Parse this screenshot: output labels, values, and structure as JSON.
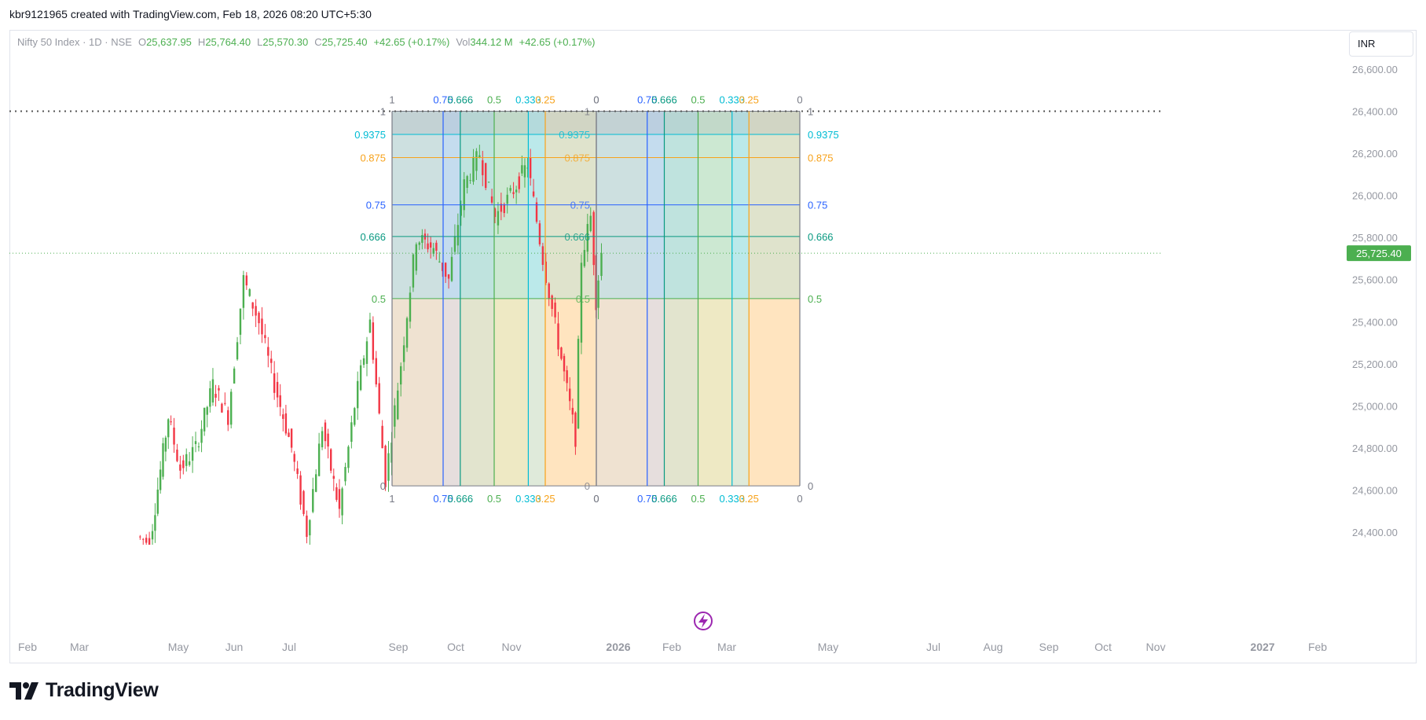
{
  "header": {
    "attribution": "kbr9121965 created with TradingView.com, Feb 18, 2026 08:20 UTC+5:30"
  },
  "legend": {
    "symbol": "Nifty 50 Index · 1D · NSE",
    "open_label": "O",
    "open": "25,637.95",
    "high_label": "H",
    "high": "25,764.40",
    "low_label": "L",
    "low": "25,570.30",
    "close_label": "C",
    "close": "25,725.40",
    "change": "+42.65 (+0.17%)",
    "vol_label": "Vol",
    "vol": "344.12 M",
    "vol_change": "+42.65 (+0.17%)"
  },
  "currency": "INR",
  "footer": {
    "brand": "TradingView"
  },
  "colors": {
    "up": "#4caf50",
    "down": "#f23645",
    "price_tag": "#4caf50",
    "axis_text": "#9598a1"
  },
  "chart_data": {
    "type": "candlestick",
    "symbol": "Nifty 50 Index",
    "timeframe": "1D",
    "exchange": "NSE",
    "y_axis": {
      "ticks": [
        26600,
        26400,
        26200,
        26000,
        25800,
        25600,
        25400,
        25200,
        25000,
        24800,
        24600,
        24400
      ],
      "tick_labels": [
        "26,600.00",
        "26,400.00",
        "26,200.00",
        "26,000.00",
        "25,800.00",
        "25,600.00",
        "25,400.00",
        "25,200.00",
        "25,000.00",
        "24,800.00",
        "24,600.00",
        "24,400.00"
      ],
      "ylim": [
        24340,
        26800
      ]
    },
    "x_axis": {
      "labels": [
        "Feb",
        "Mar",
        "May",
        "Jun",
        "Jul",
        "Sep",
        "Oct",
        "Nov",
        "2026",
        "Feb",
        "Mar",
        "May",
        "Jul",
        "Aug",
        "Sep",
        "Oct",
        "Nov",
        "2027",
        "Feb"
      ],
      "bold_labels": [
        "2026",
        "2027"
      ]
    },
    "last_price": 25725.4,
    "last_price_label": "25,725.40",
    "reference_line_price": 26400,
    "close_path": [
      {
        "date": "2025-04-22",
        "close": 24380
      },
      {
        "date": "2025-04-30",
        "close": 24350
      },
      {
        "date": "2025-05-12",
        "close": 24950
      },
      {
        "date": "2025-05-20",
        "close": 24700
      },
      {
        "date": "2025-05-30",
        "close": 24800
      },
      {
        "date": "2025-06-10",
        "close": 25100
      },
      {
        "date": "2025-06-20",
        "close": 24950
      },
      {
        "date": "2025-06-30",
        "close": 25600
      },
      {
        "date": "2025-07-10",
        "close": 25400
      },
      {
        "date": "2025-07-20",
        "close": 25100
      },
      {
        "date": "2025-07-31",
        "close": 24800
      },
      {
        "date": "2025-08-10",
        "close": 24400
      },
      {
        "date": "2025-08-20",
        "close": 24900
      },
      {
        "date": "2025-08-31",
        "close": 24500
      },
      {
        "date": "2025-09-10",
        "close": 25000
      },
      {
        "date": "2025-09-20",
        "close": 25400
      },
      {
        "date": "2025-09-30",
        "close": 24650
      },
      {
        "date": "2025-10-10",
        "close": 25200
      },
      {
        "date": "2025-10-20",
        "close": 25800
      },
      {
        "date": "2025-10-31",
        "close": 25750
      },
      {
        "date": "2025-11-10",
        "close": 25600
      },
      {
        "date": "2025-11-20",
        "close": 26050
      },
      {
        "date": "2025-11-30",
        "close": 26200
      },
      {
        "date": "2025-12-10",
        "close": 25900
      },
      {
        "date": "2025-12-20",
        "close": 26000
      },
      {
        "date": "2025-12-31",
        "close": 26150
      },
      {
        "date": "2026-01-10",
        "close": 25700
      },
      {
        "date": "2026-01-20",
        "close": 25300
      },
      {
        "date": "2026-01-31",
        "close": 24850
      },
      {
        "date": "2026-02-04",
        "close": 25700
      },
      {
        "date": "2026-02-10",
        "close": 25900
      },
      {
        "date": "2026-02-13",
        "close": 25500
      },
      {
        "date": "2026-02-17",
        "close": 25725.4
      }
    ],
    "fib_time_zones": {
      "top_labels": [
        "1",
        "0.75",
        "0.666",
        "0.5",
        "0.333",
        "0.25",
        "0",
        "0",
        "0.75",
        "0.666",
        "0.5",
        "0.333",
        "0.25",
        "0"
      ],
      "bottom_labels": [
        "1",
        "0.75",
        "0.666",
        "0.5",
        "0.333",
        "0.25",
        "0",
        "0",
        "0.75",
        "0.666",
        "0.5",
        "0.333",
        "0.25",
        "0"
      ],
      "level_labels_left": [
        "1",
        "0.9375",
        "0.875",
        "0.75",
        "0.666",
        "0.5",
        "0"
      ],
      "level_labels_mid": [
        "1",
        "0.9375",
        "0.875",
        "0.75",
        "0.666",
        "0.5",
        "0"
      ],
      "level_labels_right": [
        "1",
        "0.9375",
        "0.875",
        "0.75",
        "0.666",
        "0.5",
        "0"
      ],
      "price_levels": [
        {
          "level": "1",
          "price": 26400
        },
        {
          "level": "0.9375",
          "price": 26290
        },
        {
          "level": "0.875",
          "price": 26180
        },
        {
          "level": "0.75",
          "price": 25955
        },
        {
          "level": "0.666",
          "price": 25805
        },
        {
          "level": "0.5",
          "price": 25510
        },
        {
          "level": "0",
          "price": 24620
        }
      ]
    },
    "grid": false
  }
}
